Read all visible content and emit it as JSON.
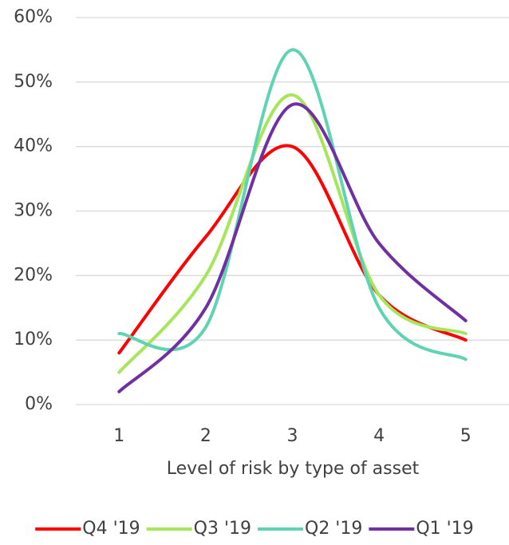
{
  "chart_data": {
    "type": "line",
    "x_label": "Level of risk by type of asset",
    "categories": [
      "1",
      "2",
      "3",
      "4",
      "5"
    ],
    "series": [
      {
        "name": "Q4 '19",
        "color": "#ff0000",
        "values": [
          8,
          26,
          40,
          17,
          10
        ]
      },
      {
        "name": "Q3 '19",
        "color": "#a6e65a",
        "values": [
          5,
          20,
          48,
          17,
          11
        ]
      },
      {
        "name": "Q2 '19",
        "color": "#5fd3b3",
        "values": [
          11,
          12,
          55,
          15,
          7
        ]
      },
      {
        "name": "Q1 '19",
        "color": "#7030a0",
        "values": [
          2,
          15,
          46.5,
          25,
          13
        ]
      }
    ],
    "ylim": [
      0,
      60
    ],
    "yticks": [
      {
        "value": 0,
        "label": "0%"
      },
      {
        "value": 10,
        "label": "10%"
      },
      {
        "value": 20,
        "label": "20%"
      },
      {
        "value": 30,
        "label": "30%"
      },
      {
        "value": 40,
        "label": "40%"
      },
      {
        "value": 50,
        "label": "50%"
      },
      {
        "value": 60,
        "label": "60%"
      }
    ],
    "grid": true,
    "smooth": true,
    "legend": "bottom"
  }
}
